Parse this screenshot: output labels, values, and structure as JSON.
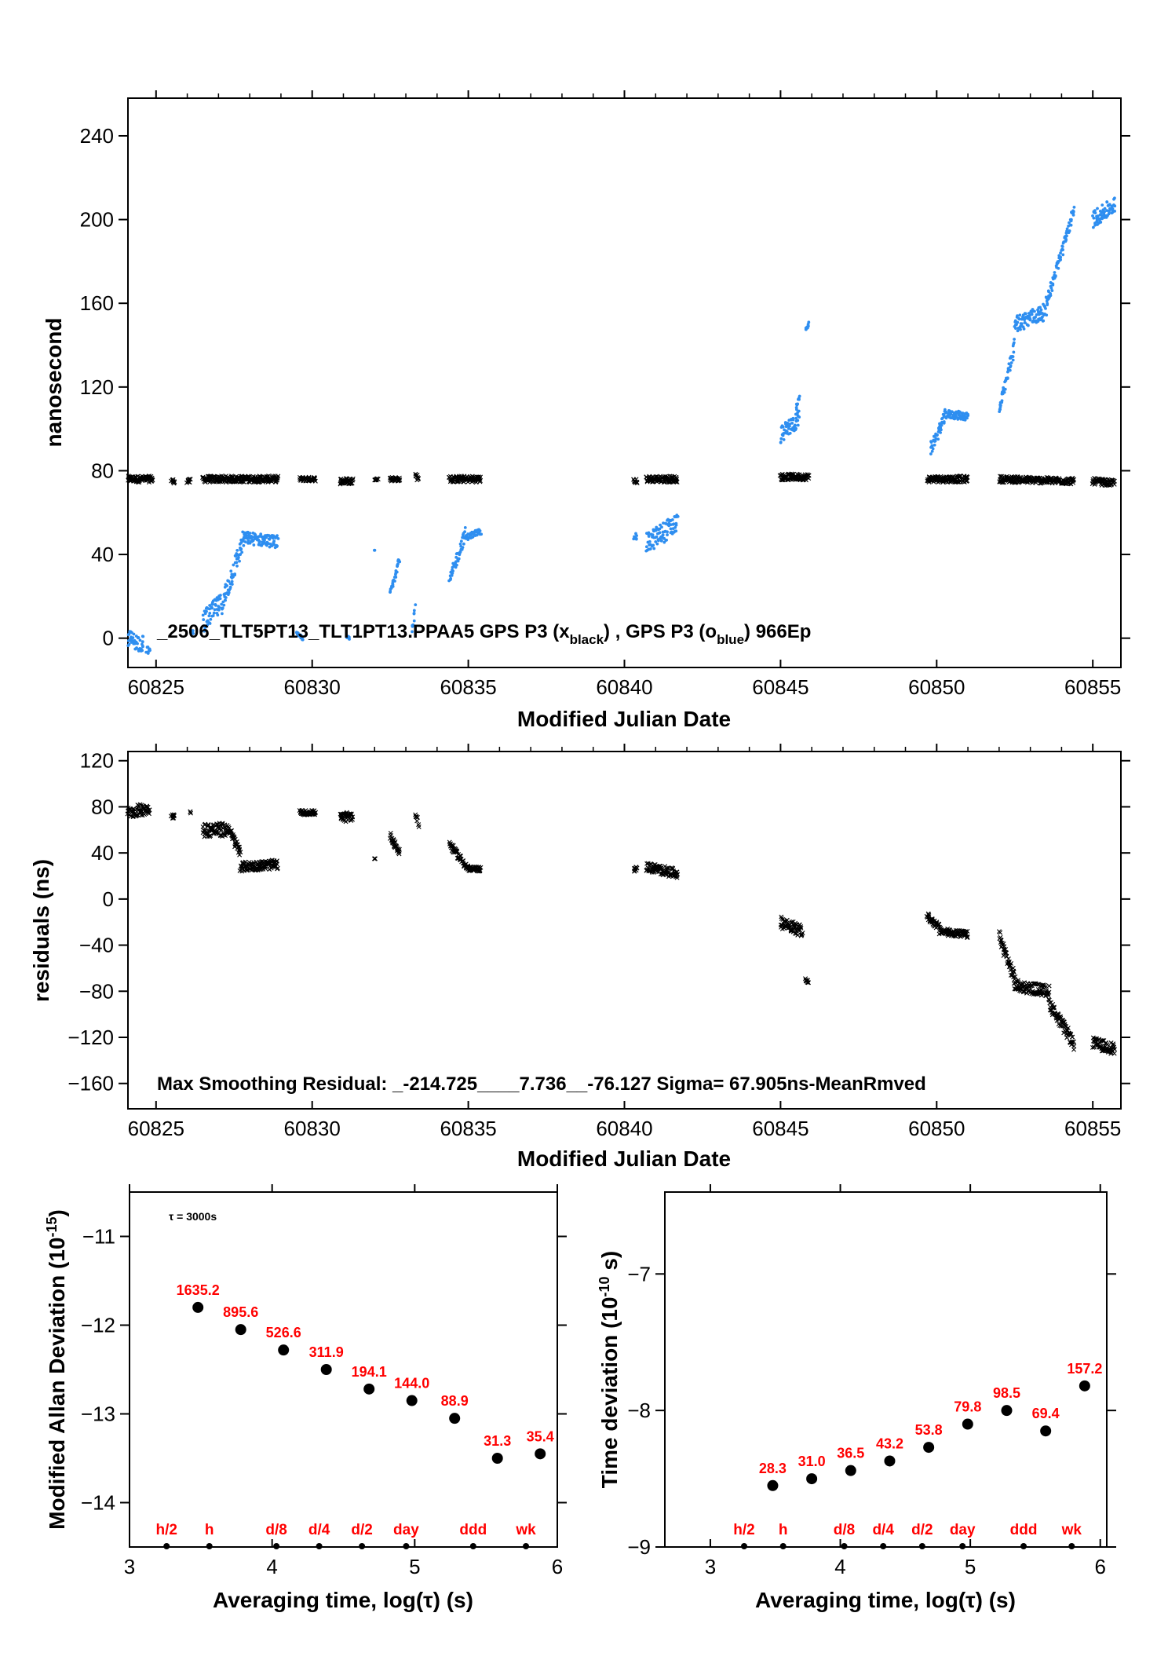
{
  "chart_data": [
    {
      "type": "scatter",
      "xlabel": "Modified Julian Date",
      "ylabel": "nanosecond",
      "xlim": [
        60824.1,
        60855.9
      ],
      "ylim": [
        -14,
        258
      ],
      "xticks": [
        60825,
        60830,
        60835,
        60840,
        60845,
        60850,
        60855
      ],
      "yticks": [
        0,
        40,
        80,
        120,
        160,
        200,
        240
      ],
      "ytick_labels": [
        "0",
        "40",
        "80",
        "120",
        "160",
        "200",
        "240"
      ],
      "annotation": "_2506_TLT5PT13_TLT1PT13.PPAA5     GPS P3 (x",
      "annotation_sub1": "black",
      "annotation_mid": ") ,  GPS P3 (o",
      "annotation_sub2": "blue",
      "annotation_end": ")  966Ep",
      "series": [
        {
          "name": "GPS P3 (x black)",
          "color": "#000000",
          "marker": "x",
          "segments": [
            {
              "x0": 60824.1,
              "x1": 60824.9,
              "y0": 76,
              "y1": 76,
              "spread": 1.5
            },
            {
              "x0": 60825.5,
              "x1": 60825.6,
              "y0": 75,
              "y1": 75,
              "spread": 1
            },
            {
              "x0": 60826.0,
              "x1": 60826.1,
              "y0": 75,
              "y1": 75,
              "spread": 1
            },
            {
              "x0": 60826.5,
              "x1": 60828.9,
              "y0": 76,
              "y1": 76,
              "spread": 1.5
            },
            {
              "x0": 60829.6,
              "x1": 60830.1,
              "y0": 76,
              "y1": 76,
              "spread": 1
            },
            {
              "x0": 60830.9,
              "x1": 60831.3,
              "y0": 75,
              "y1": 75,
              "spread": 1.5
            },
            {
              "x0": 60832.0,
              "x1": 60832.1,
              "y0": 76,
              "y1": 76,
              "spread": 0.5
            },
            {
              "x0": 60832.5,
              "x1": 60832.8,
              "y0": 76,
              "y1": 76,
              "spread": 1
            },
            {
              "x0": 60833.3,
              "x1": 60833.4,
              "y0": 77,
              "y1": 77,
              "spread": 1.5
            },
            {
              "x0": 60834.4,
              "x1": 60835.4,
              "y0": 76,
              "y1": 76,
              "spread": 1.5
            },
            {
              "x0": 60840.3,
              "x1": 60840.4,
              "y0": 75,
              "y1": 75,
              "spread": 1
            },
            {
              "x0": 60840.7,
              "x1": 60841.7,
              "y0": 76,
              "y1": 76,
              "spread": 1.5
            },
            {
              "x0": 60845.0,
              "x1": 60845.9,
              "y0": 77,
              "y1": 77,
              "spread": 1.5
            },
            {
              "x0": 60849.7,
              "x1": 60851.0,
              "y0": 76,
              "y1": 76,
              "spread": 1.5
            },
            {
              "x0": 60852.0,
              "x1": 60854.4,
              "y0": 76,
              "y1": 75,
              "spread": 1.5
            },
            {
              "x0": 60855.0,
              "x1": 60855.7,
              "y0": 75,
              "y1": 74,
              "spread": 1.5
            }
          ]
        },
        {
          "name": "GPS P3 (o blue)",
          "color": "#2e8ef0",
          "marker": "o",
          "segments": [
            {
              "x0": 60824.1,
              "x1": 60824.6,
              "y0": 0,
              "y1": -3,
              "spread": 4
            },
            {
              "x0": 60824.7,
              "x1": 60824.8,
              "y0": -5,
              "y1": -7,
              "spread": 2
            },
            {
              "x0": 60826.1,
              "x1": 60826.2,
              "y0": 3,
              "y1": 3,
              "spread": 1
            },
            {
              "x0": 60826.5,
              "x1": 60827.2,
              "y0": 8,
              "y1": 18,
              "spread": 5
            },
            {
              "x0": 60827.2,
              "x1": 60827.8,
              "y0": 20,
              "y1": 47,
              "spread": 5
            },
            {
              "x0": 60827.8,
              "x1": 60828.9,
              "y0": 48,
              "y1": 46,
              "spread": 3
            },
            {
              "x0": 60829.5,
              "x1": 60829.7,
              "y0": 2,
              "y1": 0,
              "spread": 1
            },
            {
              "x0": 60831.1,
              "x1": 60831.2,
              "y0": 0,
              "y1": 0,
              "spread": 1
            },
            {
              "x0": 60832.0,
              "x1": 60832.0,
              "y0": 42,
              "y1": 42,
              "spread": 0
            },
            {
              "x0": 60832.5,
              "x1": 60832.8,
              "y0": 22,
              "y1": 38,
              "spread": 1.5
            },
            {
              "x0": 60833.2,
              "x1": 60833.3,
              "y0": 3,
              "y1": 15,
              "spread": 1.5
            },
            {
              "x0": 60834.4,
              "x1": 60834.9,
              "y0": 27,
              "y1": 50,
              "spread": 3
            },
            {
              "x0": 60834.9,
              "x1": 60835.4,
              "y0": 48,
              "y1": 51,
              "spread": 1.5
            },
            {
              "x0": 60840.3,
              "x1": 60840.4,
              "y0": 49,
              "y1": 48,
              "spread": 1.5
            },
            {
              "x0": 60840.7,
              "x1": 60841.7,
              "y0": 45,
              "y1": 55,
              "spread": 5
            },
            {
              "x0": 60845.0,
              "x1": 60845.6,
              "y0": 97,
              "y1": 105,
              "spread": 4
            },
            {
              "x0": 60845.5,
              "x1": 60845.6,
              "y0": 110,
              "y1": 115,
              "spread": 1
            },
            {
              "x0": 60845.8,
              "x1": 60845.9,
              "y0": 148,
              "y1": 150,
              "spread": 1
            },
            {
              "x0": 60849.8,
              "x1": 60850.3,
              "y0": 90,
              "y1": 107,
              "spread": 3
            },
            {
              "x0": 60850.3,
              "x1": 60851.0,
              "y0": 107,
              "y1": 106,
              "spread": 2
            },
            {
              "x0": 60852.0,
              "x1": 60852.5,
              "y0": 108,
              "y1": 140,
              "spread": 3
            },
            {
              "x0": 60852.5,
              "x1": 60853.5,
              "y0": 150,
              "y1": 156,
              "spread": 4
            },
            {
              "x0": 60853.5,
              "x1": 60854.4,
              "y0": 160,
              "y1": 204,
              "spread": 3
            },
            {
              "x0": 60855.0,
              "x1": 60855.7,
              "y0": 200,
              "y1": 207,
              "spread": 4
            }
          ]
        }
      ]
    },
    {
      "type": "scatter",
      "xlabel": "Modified Julian Date",
      "ylabel": "residuals (ns)",
      "xlim": [
        60824.1,
        60855.9
      ],
      "ylim": [
        -182,
        128
      ],
      "xticks": [
        60825,
        60830,
        60835,
        60840,
        60845,
        60850,
        60855
      ],
      "yticks": [
        -160,
        -120,
        -80,
        -40,
        0,
        40,
        80,
        120
      ],
      "ytick_labels": [
        "−160",
        "−120",
        "−80",
        "−40",
        "0",
        "40",
        "80",
        "120"
      ],
      "annotation": "Max Smoothing Residual: _-214.725____7.736__-76.127  Sigma= 67.905ns-MeanRmved",
      "series": [
        {
          "name": "residuals",
          "color": "#000000",
          "marker": "x",
          "segments": [
            {
              "x0": 60824.1,
              "x1": 60824.8,
              "y0": 75,
              "y1": 79,
              "spread": 5
            },
            {
              "x0": 60825.5,
              "x1": 60825.6,
              "y0": 72,
              "y1": 72,
              "spread": 2
            },
            {
              "x0": 60826.1,
              "x1": 60826.1,
              "y0": 75,
              "y1": 75,
              "spread": 1
            },
            {
              "x0": 60826.5,
              "x1": 60827.3,
              "y0": 60,
              "y1": 60,
              "spread": 6
            },
            {
              "x0": 60827.3,
              "x1": 60827.7,
              "y0": 62,
              "y1": 40,
              "spread": 4
            },
            {
              "x0": 60827.7,
              "x1": 60828.9,
              "y0": 28,
              "y1": 30,
              "spread": 4
            },
            {
              "x0": 60829.6,
              "x1": 60830.1,
              "y0": 75,
              "y1": 75,
              "spread": 2
            },
            {
              "x0": 60830.9,
              "x1": 60831.3,
              "y0": 70,
              "y1": 72,
              "spread": 4
            },
            {
              "x0": 60832.0,
              "x1": 60832.0,
              "y0": 35,
              "y1": 35,
              "spread": 0
            },
            {
              "x0": 60832.5,
              "x1": 60832.8,
              "y0": 55,
              "y1": 40,
              "spread": 3
            },
            {
              "x0": 60833.3,
              "x1": 60833.4,
              "y0": 75,
              "y1": 65,
              "spread": 3
            },
            {
              "x0": 60834.4,
              "x1": 60835.0,
              "y0": 48,
              "y1": 26,
              "spread": 3
            },
            {
              "x0": 60835.0,
              "x1": 60835.4,
              "y0": 26,
              "y1": 26,
              "spread": 2
            },
            {
              "x0": 60840.3,
              "x1": 60840.4,
              "y0": 26,
              "y1": 26,
              "spread": 2
            },
            {
              "x0": 60840.7,
              "x1": 60841.7,
              "y0": 28,
              "y1": 22,
              "spread": 4
            },
            {
              "x0": 60845.0,
              "x1": 60845.7,
              "y0": -20,
              "y1": -28,
              "spread": 5
            },
            {
              "x0": 60845.8,
              "x1": 60845.9,
              "y0": -70,
              "y1": -72,
              "spread": 1
            },
            {
              "x0": 60849.7,
              "x1": 60850.1,
              "y0": -15,
              "y1": -25,
              "spread": 3
            },
            {
              "x0": 60850.1,
              "x1": 60851.0,
              "y0": -28,
              "y1": -31,
              "spread": 3
            },
            {
              "x0": 60852.0,
              "x1": 60852.5,
              "y0": -32,
              "y1": -70,
              "spread": 5
            },
            {
              "x0": 60852.5,
              "x1": 60853.6,
              "y0": -75,
              "y1": -80,
              "spread": 5
            },
            {
              "x0": 60853.6,
              "x1": 60854.4,
              "y0": -90,
              "y1": -126,
              "spread": 5
            },
            {
              "x0": 60855.0,
              "x1": 60855.7,
              "y0": -125,
              "y1": -130,
              "spread": 5
            }
          ]
        }
      ]
    },
    {
      "type": "scatter",
      "xlabel": "Averaging time, log(τ) (s)",
      "ylabel": "Modified Allan Deviation (10",
      "ylabel_exp": "-15",
      "ylabel_end": ")",
      "xlim": [
        3,
        6
      ],
      "ylim": [
        -14.5,
        -10.5
      ],
      "xticks": [
        3,
        4,
        5,
        6
      ],
      "yticks": [
        -14,
        -13,
        -12,
        -11
      ],
      "ytick_labels": [
        "−14",
        "−13",
        "−12",
        "−11"
      ],
      "note": "τ = 3000s",
      "series": [
        {
          "name": "mdev",
          "color": "#000000",
          "x": [
            3.48,
            3.78,
            4.08,
            4.38,
            4.68,
            4.98,
            5.28,
            5.58,
            5.88
          ],
          "y": [
            -11.8,
            -12.05,
            -12.28,
            -12.5,
            -12.72,
            -12.85,
            -13.05,
            -13.5,
            -13.45
          ],
          "labels": [
            "1635.2",
            "895.6",
            "526.6",
            "311.9",
            "194.1",
            "144.0",
            "88.9",
            "31.3",
            "35.4"
          ]
        }
      ],
      "markers": {
        "x": [
          3.26,
          3.56,
          4.03,
          4.33,
          4.63,
          4.94,
          5.41,
          5.78
        ],
        "labels": [
          "h/2",
          "h",
          "d/8",
          "d/4",
          "d/2",
          "day",
          "ddd",
          "wk"
        ]
      }
    },
    {
      "type": "scatter",
      "xlabel": "Averaging time, log(τ) (s)",
      "ylabel": "Time deviation (10",
      "ylabel_exp": "-10",
      "ylabel_end": " s)",
      "xlim": [
        2.65,
        6.05
      ],
      "ylim": [
        -9,
        -6.4
      ],
      "xticks": [
        3,
        4,
        5,
        6
      ],
      "yticks": [
        -9,
        -8,
        -7
      ],
      "ytick_labels": [
        "−9",
        "−8",
        "−7"
      ],
      "series": [
        {
          "name": "tdev",
          "color": "#000000",
          "x": [
            3.48,
            3.78,
            4.08,
            4.38,
            4.68,
            4.98,
            5.28,
            5.58,
            5.88
          ],
          "y": [
            -8.55,
            -8.5,
            -8.44,
            -8.37,
            -8.27,
            -8.1,
            -8.0,
            -8.15,
            -7.82
          ],
          "labels": [
            "28.3",
            "31.0",
            "36.5",
            "43.2",
            "53.8",
            "79.8",
            "98.5",
            "69.4",
            "157.2"
          ]
        }
      ],
      "markers": {
        "x": [
          3.26,
          3.56,
          4.03,
          4.33,
          4.63,
          4.94,
          5.41,
          5.78
        ],
        "labels": [
          "h/2",
          "h",
          "d/8",
          "d/4",
          "d/2",
          "day",
          "ddd",
          "wk"
        ]
      }
    }
  ]
}
